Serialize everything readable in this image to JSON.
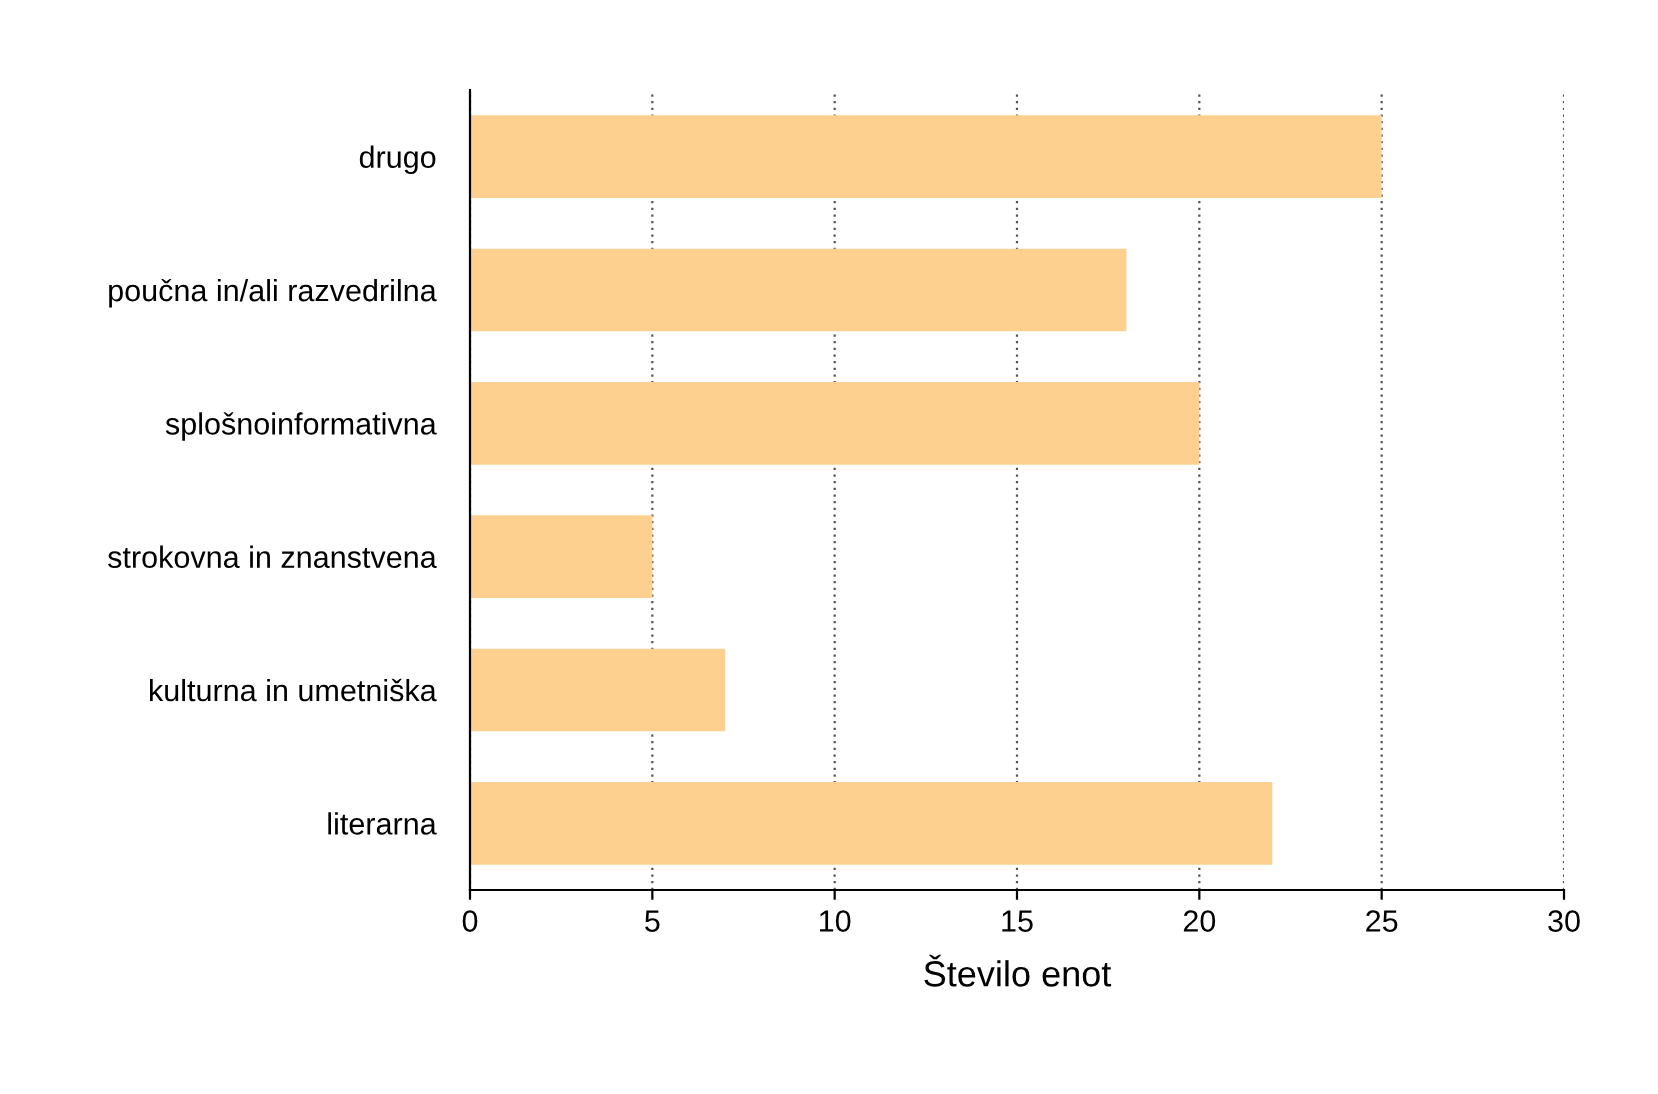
{
  "chart_data": {
    "type": "bar",
    "orientation": "horizontal",
    "xlabel": "Število enot",
    "categories": [
      "drugo",
      "poučna in/ali razvedrilna",
      "splošnoinformativna",
      "strokovna in znanstvena",
      "kulturna in umetniška",
      "literarna"
    ],
    "values": [
      25,
      18,
      20,
      5,
      7,
      22
    ],
    "color": "#fdd08f",
    "xlim": [
      0,
      30
    ],
    "xticks": [
      0,
      5,
      10,
      15,
      20,
      25,
      30
    ],
    "grid": "x"
  }
}
